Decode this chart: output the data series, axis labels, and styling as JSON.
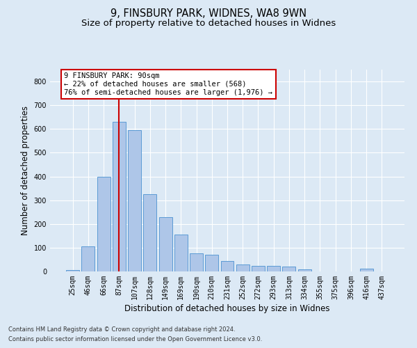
{
  "title_line1": "9, FINSBURY PARK, WIDNES, WA8 9WN",
  "title_line2": "Size of property relative to detached houses in Widnes",
  "xlabel": "Distribution of detached houses by size in Widnes",
  "ylabel": "Number of detached properties",
  "categories": [
    "25sqm",
    "46sqm",
    "66sqm",
    "87sqm",
    "107sqm",
    "128sqm",
    "149sqm",
    "169sqm",
    "190sqm",
    "210sqm",
    "231sqm",
    "252sqm",
    "272sqm",
    "293sqm",
    "313sqm",
    "334sqm",
    "355sqm",
    "375sqm",
    "396sqm",
    "416sqm",
    "437sqm"
  ],
  "values": [
    5,
    105,
    400,
    630,
    595,
    325,
    230,
    155,
    75,
    70,
    45,
    28,
    22,
    22,
    20,
    10,
    0,
    0,
    0,
    12,
    0
  ],
  "bar_color": "#aec6e8",
  "bar_edge_color": "#5b9bd5",
  "vline_x": 3,
  "vline_color": "#cc0000",
  "ylim": [
    0,
    850
  ],
  "yticks": [
    0,
    100,
    200,
    300,
    400,
    500,
    600,
    700,
    800
  ],
  "annotation_text": "9 FINSBURY PARK: 90sqm\n← 22% of detached houses are smaller (568)\n76% of semi-detached houses are larger (1,976) →",
  "annotation_box_color": "#ffffff",
  "annotation_box_edge": "#cc0000",
  "footer_line1": "Contains HM Land Registry data © Crown copyright and database right 2024.",
  "footer_line2": "Contains public sector information licensed under the Open Government Licence v3.0.",
  "bg_color": "#dce9f5",
  "plot_bg_color": "#dce9f5",
  "grid_color": "#ffffff",
  "title_fontsize": 10.5,
  "subtitle_fontsize": 9.5,
  "tick_fontsize": 7,
  "label_fontsize": 8.5,
  "annotation_fontsize": 7.5,
  "footer_fontsize": 6
}
